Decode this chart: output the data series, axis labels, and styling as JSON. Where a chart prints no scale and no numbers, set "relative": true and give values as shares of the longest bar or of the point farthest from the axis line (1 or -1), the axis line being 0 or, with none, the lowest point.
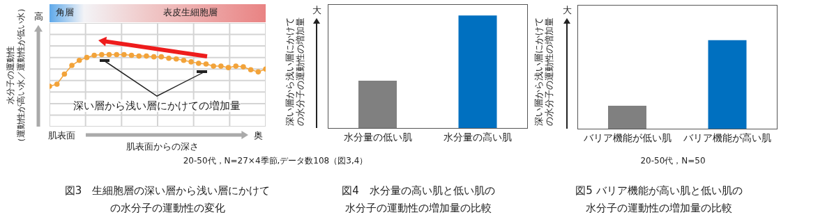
{
  "chart_data": [
    {
      "type": "line",
      "relative": true,
      "title": "図3　生細胞層の深い層から浅い層にかけての水分子の運動性の変化",
      "xlabel": "肌表面からの深さ",
      "ylabel": "水分子の運動性",
      "grid": true,
      "marker": "circle",
      "line_style": "solid",
      "categories": [
        null,
        null,
        null,
        null,
        null,
        null,
        null,
        null,
        null,
        null,
        null,
        null,
        null,
        null,
        null,
        null,
        null,
        null,
        null,
        null,
        null,
        null,
        null,
        null,
        null,
        null,
        null,
        null,
        null,
        null
      ],
      "series": [
        {
          "color": "#f2a33a",
          "values": [
            0.56,
            0.59,
            0.73,
            0.85,
            0.92,
            0.96,
            0.99,
            1,
            1,
            1,
            1,
            0.99,
            0.98,
            0.98,
            0.97,
            0.97,
            0.95,
            0.94,
            0.92,
            0.9,
            0.88,
            0.87,
            0.84,
            0.84,
            0.82,
            0.84,
            0.83,
            0.79,
            0.76,
            0.8
          ]
        }
      ],
      "annotations": [
        "角層",
        "表皮生細胞層",
        "高",
        "肌表面",
        "奥",
        "深い層から浅い層にかけての増加量",
        "20-50代，N=27×4季節,データ数108（図3,4）",
        "（運動性が高い水／運動性が低い水）"
      ]
    },
    {
      "type": "bar",
      "relative": true,
      "title": "図4　水分量の高い肌と低い肌の水分子の運動性の増加量の比較",
      "ylabel": "深い層から浅い層にかけての水分子の運動性の増加量",
      "categories": [
        "水分量の低い肌",
        "水分量の高い肌"
      ],
      "values": [
        0.42,
        1
      ],
      "colors": [
        "#808080",
        "#0070c0"
      ],
      "annotations": [
        "大"
      ]
    },
    {
      "type": "bar",
      "relative": true,
      "title": "図5 バリア機能が高い肌と低い肌の水分子の運動性の増加量の比較",
      "ylabel": "深い層から浅い層にかけての水分子の運動性の増加量",
      "categories": [
        "バリア機能が低い肌",
        "バリア機能が高い肌"
      ],
      "values": [
        0.26,
        1
      ],
      "colors": [
        "#808080",
        "#0070c0"
      ],
      "annotations": [
        "大",
        "20-50代，N=50"
      ]
    }
  ]
}
